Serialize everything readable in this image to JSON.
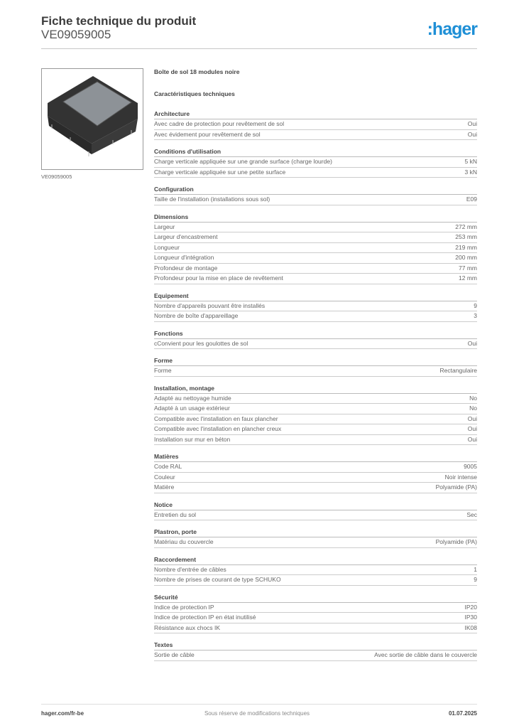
{
  "header": {
    "title": "Fiche technique du produit",
    "product_code": "VE09059005",
    "logo": ":hager"
  },
  "image": {
    "caption": "VE09059005"
  },
  "product_name": "Boîte de sol 18 modules noire",
  "characteristics_title": "Caractéristiques techniques",
  "sections": [
    {
      "title": "Architecture",
      "rows": [
        [
          "Avec cadre de protection pour revêtement de sol",
          "Oui"
        ],
        [
          "Avec évidement pour revêtement de sol",
          "Oui"
        ]
      ]
    },
    {
      "title": "Conditions d'utilisation",
      "rows": [
        [
          "Charge verticale appliquée sur une grande surface (charge lourde)",
          "5 kN"
        ],
        [
          "Charge verticale appliquée sur une petite surface",
          "3 kN"
        ]
      ]
    },
    {
      "title": "Configuration",
      "rows": [
        [
          "Taille de l'installation (installations sous sol)",
          "E09"
        ]
      ]
    },
    {
      "title": "Dimensions",
      "rows": [
        [
          "Largeur",
          "272 mm"
        ],
        [
          "Largeur d'encastrement",
          "253 mm"
        ],
        [
          "Longueur",
          "219 mm"
        ],
        [
          "Longueur d'intégration",
          "200 mm"
        ],
        [
          "Profondeur de montage",
          "77 mm"
        ],
        [
          "Profondeur pour la mise en place de revêtement",
          "12 mm"
        ]
      ]
    },
    {
      "title": "Equipement",
      "rows": [
        [
          "Nombre d'appareils pouvant être installés",
          "9"
        ],
        [
          "Nombre de boîte d'appareillage",
          "3"
        ]
      ]
    },
    {
      "title": "Fonctions",
      "rows": [
        [
          "cConvient pour les goulottes de sol",
          "Oui"
        ]
      ]
    },
    {
      "title": "Forme",
      "rows": [
        [
          "Forme",
          "Rectangulaire"
        ]
      ]
    },
    {
      "title": "Installation, montage",
      "rows": [
        [
          "Adapté au nettoyage humide",
          "No"
        ],
        [
          "Adapté à un usage extérieur",
          "No"
        ],
        [
          "Compatible avec l'installation en faux plancher",
          "Oui"
        ],
        [
          "Compatible avec l'installation en plancher creux",
          "Oui"
        ],
        [
          "Installation sur mur en béton",
          "Oui"
        ]
      ]
    },
    {
      "title": "Matières",
      "rows": [
        [
          "Code RAL",
          "9005"
        ],
        [
          "Couleur",
          "Noir intense"
        ],
        [
          "Matière",
          "Polyamide (PA)"
        ]
      ]
    },
    {
      "title": "Notice",
      "rows": [
        [
          "Entretien du sol",
          "Sec"
        ]
      ]
    },
    {
      "title": " Plastron, porte",
      "rows": [
        [
          "Matériau du couvercle",
          "Polyamide (PA)"
        ]
      ]
    },
    {
      "title": "Raccordement",
      "rows": [
        [
          "Nombre d'entrée de câbles",
          "1"
        ],
        [
          "Nombre de prises de courant de type SCHUKO",
          "9"
        ]
      ]
    },
    {
      "title": "Sécurité",
      "rows": [
        [
          "Indice de protection IP",
          "IP20"
        ],
        [
          "Indice de protection IP en état inutilisé",
          "IP30"
        ],
        [
          "Résistance aux chocs IK",
          "IK08"
        ]
      ]
    },
    {
      "title": "Textes",
      "rows": [
        [
          "Sortie de câble",
          "Avec sortie de câble dans le couvercle"
        ]
      ]
    }
  ],
  "footer": {
    "website": "hager.com/fr-be",
    "disclaimer": "Sous réserve de modifications techniques",
    "date": "01.07.2025"
  }
}
